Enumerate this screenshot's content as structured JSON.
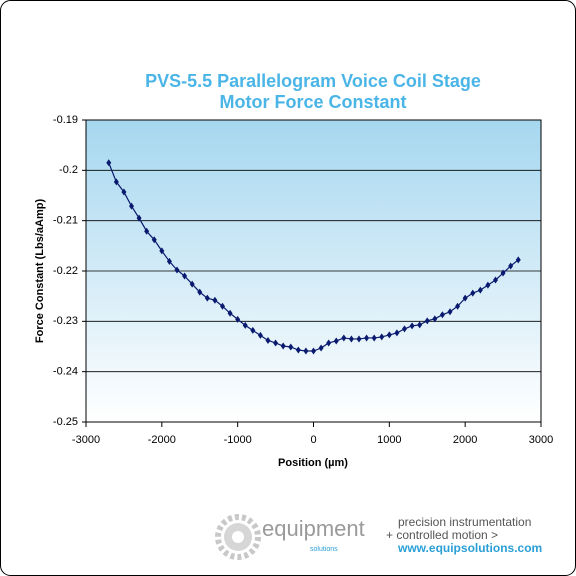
{
  "chart_data": {
    "type": "line",
    "title": [
      "PVS-5.5 Parallelogram Voice Coil Stage",
      "Motor Force Constant"
    ],
    "x_label": "Position (µm)",
    "y_label": "Force Constant (Lbs/aAmp)",
    "xlim": [
      -3000,
      3000
    ],
    "xticks": [
      -3000,
      -2000,
      -1000,
      0,
      1000,
      2000,
      3000
    ],
    "ylim": [
      -0.25,
      -0.19
    ],
    "yticks": [
      -0.25,
      -0.24,
      -0.23,
      -0.22,
      -0.21,
      -0.2,
      -0.19
    ],
    "grid": true,
    "series": [
      {
        "color": "#0a1a6e",
        "x": [
          -2700,
          -2600,
          -2500,
          -2400,
          -2300,
          -2200,
          -2100,
          -2000,
          -1900,
          -1800,
          -1700,
          -1600,
          -1500,
          -1400,
          -1300,
          -1200,
          -1100,
          -1000,
          -900,
          -800,
          -700,
          -600,
          -500,
          -400,
          -300,
          -200,
          -100,
          0,
          100,
          200,
          300,
          400,
          500,
          600,
          700,
          800,
          900,
          1000,
          1100,
          1200,
          1300,
          1400,
          1500,
          1600,
          1700,
          1800,
          1900,
          2000,
          2100,
          2200,
          2300,
          2400,
          2500,
          2600,
          2700
        ],
        "values": [
          -0.1985,
          -0.2023,
          -0.2043,
          -0.2071,
          -0.2095,
          -0.2121,
          -0.2138,
          -0.216,
          -0.2181,
          -0.2198,
          -0.221,
          -0.2226,
          -0.2242,
          -0.2254,
          -0.2258,
          -0.227,
          -0.2284,
          -0.2296,
          -0.2308,
          -0.2318,
          -0.2328,
          -0.2338,
          -0.2343,
          -0.2349,
          -0.2351,
          -0.2357,
          -0.2359,
          -0.2359,
          -0.2353,
          -0.2343,
          -0.2339,
          -0.2333,
          -0.2335,
          -0.2335,
          -0.2333,
          -0.2333,
          -0.2331,
          -0.2327,
          -0.2323,
          -0.2315,
          -0.2309,
          -0.2307,
          -0.2299,
          -0.2295,
          -0.2287,
          -0.2281,
          -0.227,
          -0.2254,
          -0.2244,
          -0.2238,
          -0.2228,
          -0.2218,
          -0.2204,
          -0.219,
          -0.2178
        ]
      }
    ]
  },
  "footer": {
    "brand": "equipment",
    "brand_sub": "solutions",
    "tagline": [
      "precision instrumentation",
      "+ controlled motion >"
    ],
    "url": "www.equipsolutions.com"
  }
}
